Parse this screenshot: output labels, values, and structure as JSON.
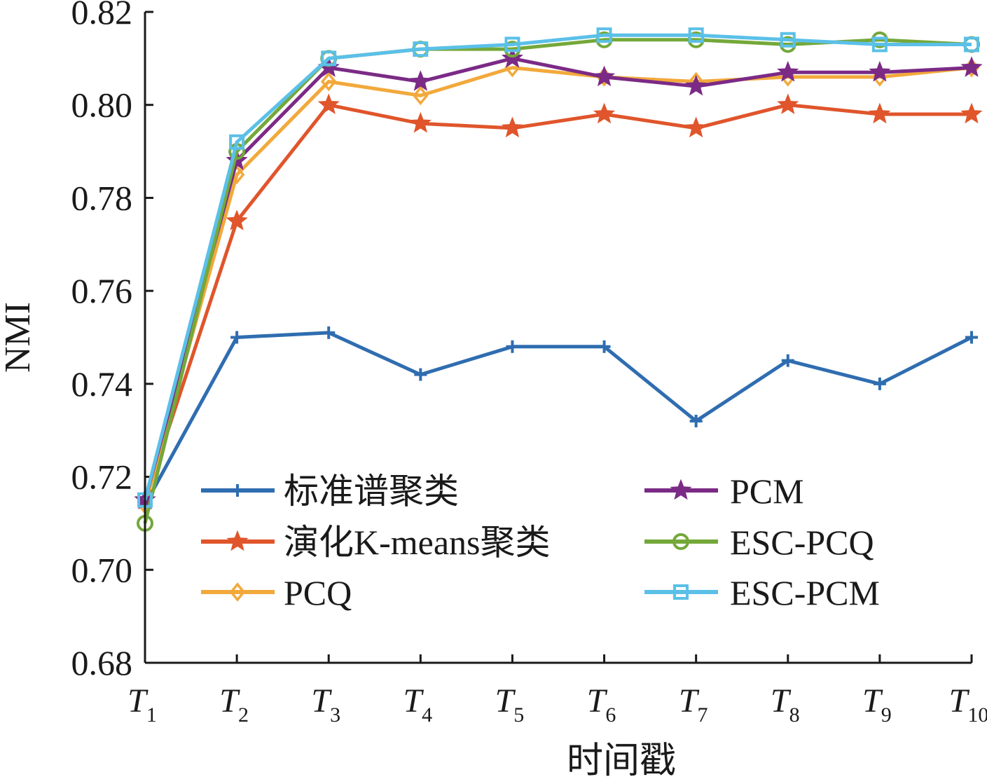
{
  "chart_data": {
    "type": "line",
    "xlabel": "时间戳",
    "ylabel": "NMI",
    "ylim": [
      0.68,
      0.82
    ],
    "yticks": [
      "0.68",
      "0.70",
      "0.72",
      "0.74",
      "0.76",
      "0.78",
      "0.80",
      "0.82"
    ],
    "categories": [
      {
        "main": "T",
        "sub": "1"
      },
      {
        "main": "T",
        "sub": "2"
      },
      {
        "main": "T",
        "sub": "3"
      },
      {
        "main": "T",
        "sub": "4"
      },
      {
        "main": "T",
        "sub": "5"
      },
      {
        "main": "T",
        "sub": "6"
      },
      {
        "main": "T",
        "sub": "7"
      },
      {
        "main": "T",
        "sub": "8"
      },
      {
        "main": "T",
        "sub": "9"
      },
      {
        "main": "T",
        "sub": "10"
      }
    ],
    "legend_position": "lower-middle, two columns",
    "grid": false,
    "series": [
      {
        "name": "标准谱聚类",
        "color": "#2f6db0",
        "marker": "plus",
        "values": [
          0.714,
          0.75,
          0.751,
          0.742,
          0.748,
          0.748,
          0.732,
          0.745,
          0.74,
          0.75
        ]
      },
      {
        "name": "演化K-means聚类",
        "color": "#e0552b",
        "marker": "star",
        "values": [
          0.715,
          0.775,
          0.8,
          0.796,
          0.795,
          0.798,
          0.795,
          0.8,
          0.798,
          0.798
        ]
      },
      {
        "name": "PCQ",
        "color": "#f2a93b",
        "marker": "diamond",
        "values": [
          0.714,
          0.785,
          0.805,
          0.802,
          0.808,
          0.806,
          0.805,
          0.806,
          0.806,
          0.808
        ]
      },
      {
        "name": "PCM",
        "color": "#7b2a86",
        "marker": "star",
        "values": [
          0.715,
          0.788,
          0.808,
          0.805,
          0.81,
          0.806,
          0.804,
          0.807,
          0.807,
          0.808
        ]
      },
      {
        "name": "ESC-PCQ",
        "color": "#74a83a",
        "marker": "circle",
        "values": [
          0.71,
          0.79,
          0.81,
          0.812,
          0.812,
          0.814,
          0.814,
          0.813,
          0.814,
          0.813
        ]
      },
      {
        "name": "ESC-PCM",
        "color": "#5bc0e8",
        "marker": "square",
        "values": [
          0.715,
          0.792,
          0.81,
          0.812,
          0.813,
          0.815,
          0.815,
          0.814,
          0.813,
          0.813
        ]
      }
    ]
  }
}
